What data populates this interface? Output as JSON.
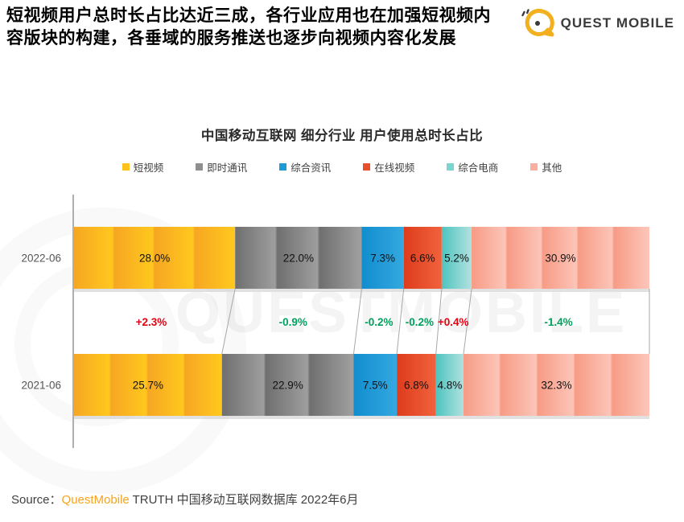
{
  "header": {
    "headline_line1": "短视频用户总时长占比达近三成，各行业应用也在加强短视频内",
    "headline_line2": "容版块的构建，各垂域的服务推送也逐步向视频内容化发展",
    "logo_text": "QUEST MOBILE"
  },
  "watermark": {
    "text": "QUESTMOBILE"
  },
  "chart_data": {
    "type": "bar",
    "variant": "horizontal-stacked-percent",
    "title": "中国移动互联网 细分行业 用户使用总时长占比",
    "categories": [
      "2022-06",
      "2021-06"
    ],
    "series": [
      {
        "name": "短视频",
        "color": "#FFC11E",
        "gradient": [
          "#F6A623",
          "#FFC81D"
        ],
        "values": [
          28.0,
          25.7
        ]
      },
      {
        "name": "即时通讯",
        "color": "#8F8F8F",
        "gradient": [
          "#6F6F6F",
          "#9E9E9E"
        ],
        "values": [
          22.0,
          22.9
        ]
      },
      {
        "name": "综合资讯",
        "color": "#1E9BD7",
        "gradient": [
          "#118DCE",
          "#33A7DF"
        ],
        "values": [
          7.3,
          7.5
        ]
      },
      {
        "name": "在线视频",
        "color": "#E8502A",
        "gradient": [
          "#DD3C1C",
          "#F0603C"
        ],
        "values": [
          6.6,
          6.8
        ]
      },
      {
        "name": "综合电商",
        "color": "#7DD3CF",
        "gradient": [
          "#4EC4BF",
          "#ACE0DE"
        ],
        "values": [
          5.2,
          4.8
        ]
      },
      {
        "name": "其他",
        "color": "#F9AF9F",
        "gradient": [
          "#F79B85",
          "#FCC5B8"
        ],
        "values": [
          30.9,
          32.3
        ]
      }
    ],
    "changes": [
      {
        "label": "+2.3%",
        "direction": "up"
      },
      {
        "label": "-0.9%",
        "direction": "down"
      },
      {
        "label": "-0.2%",
        "direction": "down"
      },
      {
        "label": "-0.2%",
        "direction": "down"
      },
      {
        "label": "+0.4%",
        "direction": "up"
      },
      {
        "label": "-1.4%",
        "direction": "down"
      }
    ],
    "change_colors": {
      "up": "#E60012",
      "down": "#00A05E"
    },
    "value_suffix": "%",
    "xlim": [
      0,
      100
    ],
    "legend_position": "top"
  },
  "source": {
    "prefix": "Source：",
    "brand": "QuestMobile",
    "rest": " TRUTH 中国移动互联网数据库 2022年6月"
  }
}
